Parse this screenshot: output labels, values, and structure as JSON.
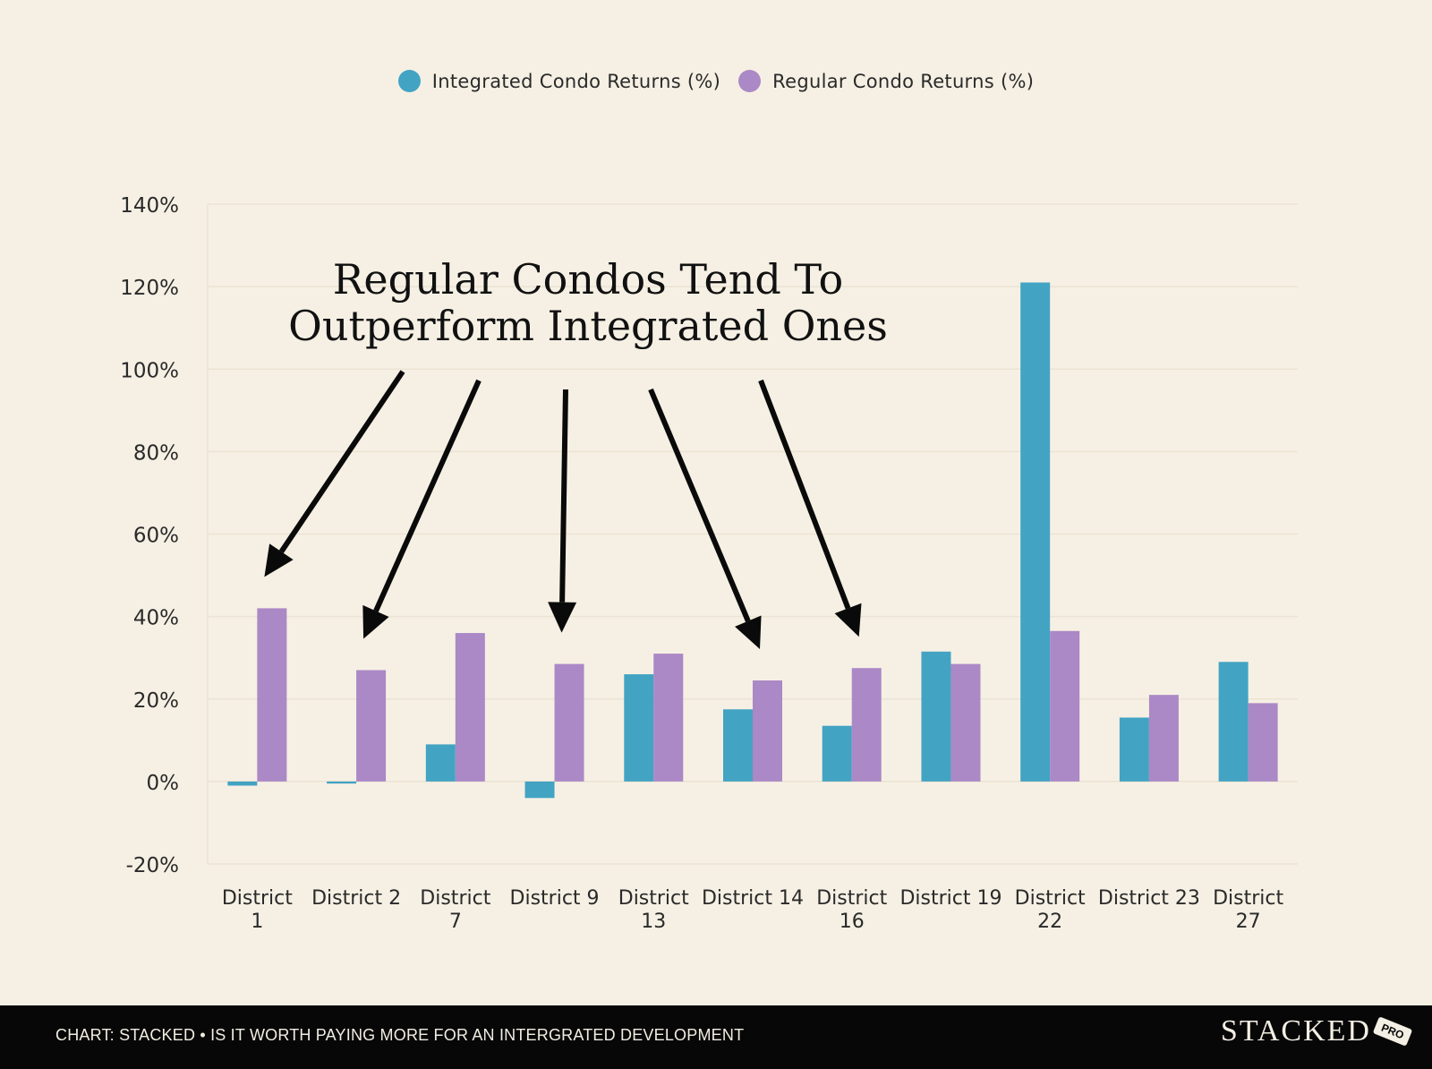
{
  "legend": {
    "integrated_label": "Integrated Condo Returns (%)",
    "regular_label": "Regular Condo Returns (%)"
  },
  "colors": {
    "integrated": "#43a3c3",
    "regular": "#ab88c6",
    "background": "#f6f0e4",
    "grid": "#ebe3d3",
    "arrow": "#0a0a0a"
  },
  "annotation": {
    "line1": "Regular Condos Tend To",
    "line2": "Outperform Integrated Ones"
  },
  "footer": {
    "caption": "CHART: STACKED • IS IT WORTH PAYING MORE FOR AN INTERGRATED DEVELOPMENT",
    "brand": "STACKED",
    "badge": "PRO"
  },
  "chart_data": {
    "type": "bar",
    "title": "",
    "xlabel": "",
    "ylabel": "",
    "ylim": [
      -20,
      140
    ],
    "yticks": [
      -20,
      0,
      20,
      40,
      60,
      80,
      100,
      120,
      140
    ],
    "ytick_labels": [
      "-20%",
      "0%",
      "20%",
      "40%",
      "60%",
      "80%",
      "100%",
      "120%",
      "140%"
    ],
    "categories": [
      [
        "District",
        "1"
      ],
      [
        "District 2"
      ],
      [
        "District",
        "7"
      ],
      [
        "District 9"
      ],
      [
        "District",
        "13"
      ],
      [
        "District 14"
      ],
      [
        "District",
        "16"
      ],
      [
        "District 19"
      ],
      [
        "District",
        "22"
      ],
      [
        "District 23"
      ],
      [
        "District",
        "27"
      ]
    ],
    "series": [
      {
        "name": "Integrated Condo Returns (%)",
        "values": [
          -1,
          -0.5,
          9,
          -4,
          26,
          17.5,
          13.5,
          31.5,
          121,
          15.5,
          29
        ]
      },
      {
        "name": "Regular Condo Returns (%)",
        "values": [
          42,
          27,
          36,
          28.5,
          31,
          24.5,
          27.5,
          28.5,
          36.5,
          21,
          19
        ]
      }
    ],
    "grid": true,
    "legend_position": "top-center",
    "annotated_categories": [
      0,
      1,
      3,
      5,
      6
    ]
  }
}
